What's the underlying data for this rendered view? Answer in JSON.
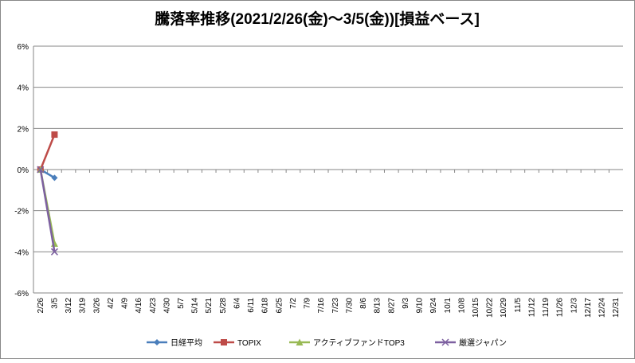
{
  "chart_data": {
    "type": "line",
    "title": "騰落率推移(2021/2/26(金)～3/5(金))[損益ベース]",
    "categories": [
      "2/26",
      "3/5",
      "3/12",
      "3/19",
      "3/26",
      "4/2",
      "4/9",
      "4/16",
      "4/23",
      "4/30",
      "5/7",
      "5/14",
      "5/21",
      "5/28",
      "6/4",
      "6/11",
      "6/18",
      "6/25",
      "7/2",
      "7/9",
      "7/16",
      "7/23",
      "7/30",
      "8/6",
      "8/13",
      "8/27",
      "9/3",
      "9/10",
      "9/24",
      "10/1",
      "10/8",
      "10/15",
      "10/22",
      "10/29",
      "11/5",
      "11/12",
      "11/19",
      "11/26",
      "12/3",
      "12/17",
      "12/24",
      "12/31"
    ],
    "series": [
      {
        "name": "日経平均",
        "color": "#4a7ebb",
        "marker": "diamond",
        "values": [
          0,
          -0.4,
          null,
          null,
          null,
          null,
          null,
          null,
          null,
          null,
          null,
          null,
          null,
          null,
          null,
          null,
          null,
          null,
          null,
          null,
          null,
          null,
          null,
          null,
          null,
          null,
          null,
          null,
          null,
          null,
          null,
          null,
          null,
          null,
          null,
          null,
          null,
          null,
          null,
          null,
          null,
          null
        ]
      },
      {
        "name": "TOPIX",
        "color": "#be4b48",
        "marker": "square",
        "values": [
          0,
          1.7,
          null,
          null,
          null,
          null,
          null,
          null,
          null,
          null,
          null,
          null,
          null,
          null,
          null,
          null,
          null,
          null,
          null,
          null,
          null,
          null,
          null,
          null,
          null,
          null,
          null,
          null,
          null,
          null,
          null,
          null,
          null,
          null,
          null,
          null,
          null,
          null,
          null,
          null,
          null,
          null
        ]
      },
      {
        "name": "アクティブファンドTOP3",
        "color": "#98b954",
        "marker": "triangle",
        "values": [
          0,
          -3.6,
          null,
          null,
          null,
          null,
          null,
          null,
          null,
          null,
          null,
          null,
          null,
          null,
          null,
          null,
          null,
          null,
          null,
          null,
          null,
          null,
          null,
          null,
          null,
          null,
          null,
          null,
          null,
          null,
          null,
          null,
          null,
          null,
          null,
          null,
          null,
          null,
          null,
          null,
          null,
          null
        ]
      },
      {
        "name": "厳選ジャパン",
        "color": "#7d60a0",
        "marker": "x",
        "values": [
          0,
          -4.0,
          null,
          null,
          null,
          null,
          null,
          null,
          null,
          null,
          null,
          null,
          null,
          null,
          null,
          null,
          null,
          null,
          null,
          null,
          null,
          null,
          null,
          null,
          null,
          null,
          null,
          null,
          null,
          null,
          null,
          null,
          null,
          null,
          null,
          null,
          null,
          null,
          null,
          null,
          null,
          null
        ]
      }
    ],
    "ylim": [
      -6,
      6
    ],
    "yticks": [
      {
        "value": -6,
        "label": "-6%"
      },
      {
        "value": -4,
        "label": "-4%"
      },
      {
        "value": -2,
        "label": "-2%"
      },
      {
        "value": 0,
        "label": "0%"
      },
      {
        "value": 2,
        "label": "2%"
      },
      {
        "value": 4,
        "label": "4%"
      },
      {
        "value": 6,
        "label": "6%"
      }
    ],
    "grid": true,
    "legend": "bottom"
  }
}
